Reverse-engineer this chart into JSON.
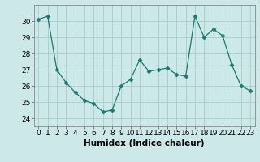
{
  "x": [
    0,
    1,
    2,
    3,
    4,
    5,
    6,
    7,
    8,
    9,
    10,
    11,
    12,
    13,
    14,
    15,
    16,
    17,
    18,
    19,
    20,
    21,
    22,
    23
  ],
  "y": [
    30.1,
    30.3,
    27.0,
    26.2,
    25.6,
    25.1,
    24.9,
    24.4,
    24.5,
    26.0,
    26.4,
    27.6,
    26.9,
    27.0,
    27.1,
    26.7,
    26.6,
    30.3,
    29.0,
    29.5,
    29.1,
    27.3,
    26.0,
    25.7
  ],
  "line_color": "#1a7a6e",
  "marker": "D",
  "marker_size": 2.5,
  "bg_color": "#cce8e8",
  "grid_color": "#aacccc",
  "xlabel": "Humidex (Indice chaleur)",
  "ylim": [
    23.5,
    31.0
  ],
  "xlim": [
    -0.5,
    23.5
  ],
  "yticks": [
    24,
    25,
    26,
    27,
    28,
    29,
    30
  ],
  "xticks": [
    0,
    1,
    2,
    3,
    4,
    5,
    6,
    7,
    8,
    9,
    10,
    11,
    12,
    13,
    14,
    15,
    16,
    17,
    18,
    19,
    20,
    21,
    22,
    23
  ],
  "tick_label_fontsize": 6.5,
  "xlabel_fontsize": 7.5,
  "spine_color": "#888888",
  "tick_color": "#555555"
}
